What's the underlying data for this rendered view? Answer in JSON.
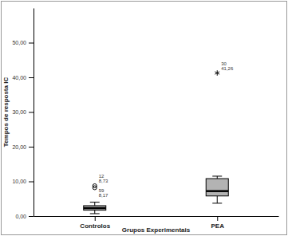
{
  "chart_data": {
    "type": "box",
    "x_label": "Grupos Experimentais",
    "y_label": "Tempos de resposta IC",
    "categories": [
      "Controlos",
      "PEA"
    ],
    "color": "#b3b3b3",
    "ylim": [
      0,
      60
    ],
    "yticks": [
      {
        "value": 0,
        "label": "0,00"
      },
      {
        "value": 10,
        "label": "10,00"
      },
      {
        "value": 20,
        "label": "20,00"
      },
      {
        "value": 30,
        "label": "30,00"
      },
      {
        "value": 40,
        "label": "40,00"
      },
      {
        "value": 50,
        "label": "50,00"
      }
    ],
    "grid": false,
    "boxes": [
      {
        "min": 0.7,
        "q1": 1.7,
        "median": 2.3,
        "q3": 3.0,
        "max": 4.0,
        "outliers": [
          {
            "value": 8.73,
            "label": "8,73",
            "case": "12",
            "marker": "circle"
          },
          {
            "value": 8.17,
            "label": "8,17",
            "case": "59",
            "marker": "circle"
          }
        ]
      },
      {
        "min": 3.7,
        "q1": 5.8,
        "median": 7.2,
        "q3": 10.8,
        "max": 11.5,
        "outliers": [
          {
            "value": 41.26,
            "label": "41,26",
            "case": "30",
            "marker": "star"
          }
        ]
      }
    ]
  }
}
